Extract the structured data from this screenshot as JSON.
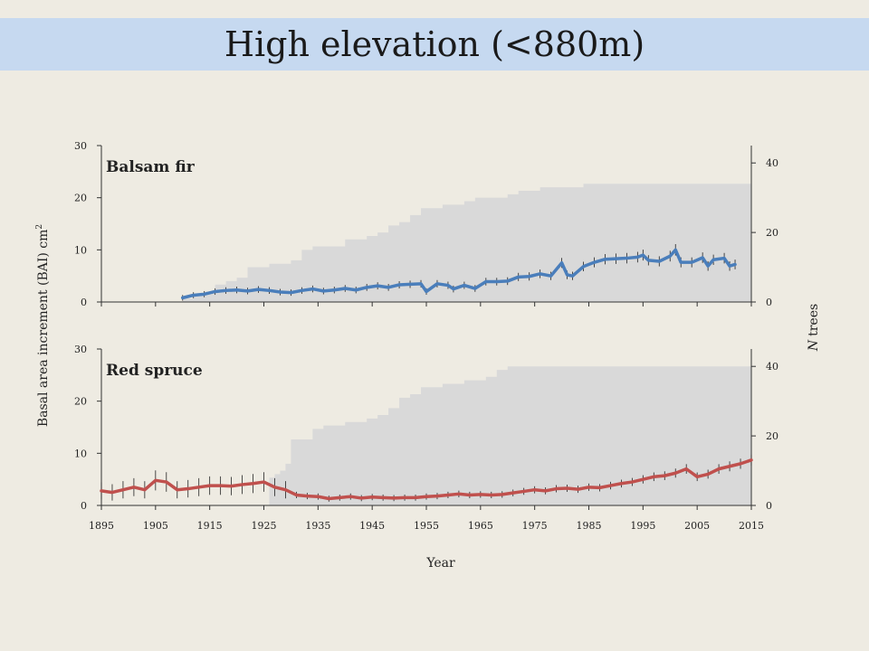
{
  "slide": {
    "title": "High elevation (<880m)"
  },
  "chart_data": {
    "type": "line",
    "xlabel": "Year",
    "ylabel_left": "Basal area increment (BAI) cm",
    "ylabel_left_superscript": "2",
    "ylabel_right_italic": "N",
    "ylabel_right": "trees",
    "x_ticks": [
      1895,
      1905,
      1915,
      1925,
      1935,
      1945,
      1955,
      1965,
      1975,
      1985,
      1995,
      2005,
      2015
    ],
    "xlim": [
      1895,
      2015
    ],
    "grid": false,
    "colors": {
      "fir": "#4a7ebb",
      "spruce": "#c0504d",
      "sample_depth": "#d9d9d9"
    },
    "panels": [
      {
        "label": "Balsam fir",
        "ylim": [
          0,
          30
        ],
        "y_ticks": [
          0,
          10,
          20,
          30
        ],
        "y2lim": [
          0,
          45
        ],
        "y2_ticks": [
          0,
          20,
          40
        ],
        "series": [
          {
            "values_x": [
              1910,
              1912,
              1914,
              1916,
              1918,
              1920,
              1922,
              1924,
              1926,
              1928,
              1930,
              1932,
              1934,
              1936,
              1938,
              1940,
              1942,
              1944,
              1946,
              1948,
              1950,
              1952,
              1954,
              1955,
              1957,
              1959,
              1960,
              1962,
              1964,
              1966,
              1968,
              1970,
              1972,
              1974,
              1976,
              1978,
              1980,
              1981,
              1982,
              1984,
              1986,
              1988,
              1990,
              1992,
              1994,
              1995,
              1996,
              1998,
              2000,
              2001,
              2002,
              2004,
              2006,
              2007,
              2008,
              2010,
              2011,
              2012
            ],
            "values_y": [
              0.8,
              1.3,
              1.5,
              2.0,
              2.2,
              2.3,
              2.1,
              2.4,
              2.2,
              1.9,
              1.8,
              2.2,
              2.5,
              2.1,
              2.3,
              2.6,
              2.3,
              2.8,
              3.1,
              2.8,
              3.3,
              3.4,
              3.5,
              2.0,
              3.5,
              3.2,
              2.5,
              3.2,
              2.6,
              3.9,
              3.9,
              4.0,
              4.8,
              4.9,
              5.4,
              5.0,
              7.5,
              5.2,
              5.0,
              6.8,
              7.6,
              8.2,
              8.3,
              8.4,
              8.6,
              9.0,
              8.0,
              7.8,
              8.8,
              10.0,
              7.6,
              7.6,
              8.5,
              6.9,
              8.1,
              8.4,
              6.9,
              7.2
            ]
          }
        ],
        "sample_depth": {
          "x": [
            1910,
            1912,
            1914,
            1916,
            1918,
            1920,
            1922,
            1924,
            1926,
            1928,
            1930,
            1932,
            1934,
            1936,
            1938,
            1940,
            1942,
            1944,
            1946,
            1948,
            1950,
            1952,
            1954,
            1956,
            1958,
            1960,
            1962,
            1964,
            1966,
            1968,
            1970,
            1972,
            1974,
            1976,
            1978,
            1980,
            1982,
            1984,
            1986,
            1988,
            1990,
            1992,
            1994,
            1996,
            1998,
            2000,
            2002,
            2004,
            2006,
            2008,
            2010,
            2012,
            2015
          ],
          "n": [
            1,
            2,
            3,
            5,
            6,
            7,
            10,
            10,
            11,
            11,
            12,
            15,
            16,
            16,
            16,
            18,
            18,
            19,
            20,
            22,
            23,
            25,
            27,
            27,
            28,
            28,
            29,
            30,
            30,
            30,
            31,
            32,
            32,
            33,
            33,
            33,
            33,
            34,
            34,
            34,
            34,
            34,
            34,
            34,
            34,
            34,
            34,
            34,
            34,
            34,
            34,
            34,
            34
          ]
        }
      },
      {
        "label": "Red spruce",
        "ylim": [
          0,
          30
        ],
        "y_ticks": [
          0,
          10,
          20,
          30
        ],
        "y2lim": [
          0,
          45
        ],
        "y2_ticks": [
          0,
          20,
          40
        ],
        "series": [
          {
            "values_x": [
              1895,
              1897,
              1899,
              1901,
              1903,
              1905,
              1907,
              1909,
              1911,
              1913,
              1915,
              1917,
              1919,
              1921,
              1923,
              1925,
              1927,
              1929,
              1931,
              1933,
              1935,
              1937,
              1939,
              1941,
              1943,
              1945,
              1947,
              1949,
              1951,
              1953,
              1955,
              1957,
              1959,
              1961,
              1963,
              1965,
              1967,
              1969,
              1971,
              1973,
              1975,
              1977,
              1979,
              1981,
              1983,
              1985,
              1987,
              1989,
              1991,
              1993,
              1995,
              1997,
              1999,
              2001,
              2003,
              2005,
              2007,
              2009,
              2011,
              2013,
              2015
            ],
            "values_y": [
              2.8,
              2.5,
              3.0,
              3.5,
              3.0,
              4.8,
              4.5,
              3.0,
              3.2,
              3.5,
              3.8,
              3.8,
              3.7,
              4.0,
              4.2,
              4.5,
              3.5,
              3.0,
              2.0,
              1.8,
              1.7,
              1.3,
              1.5,
              1.7,
              1.4,
              1.6,
              1.5,
              1.4,
              1.5,
              1.5,
              1.7,
              1.8,
              2.0,
              2.2,
              2.0,
              2.1,
              2.0,
              2.1,
              2.4,
              2.7,
              3.0,
              2.8,
              3.2,
              3.3,
              3.1,
              3.5,
              3.4,
              3.8,
              4.2,
              4.5,
              5.0,
              5.5,
              5.7,
              6.2,
              7.0,
              5.5,
              6.0,
              7.0,
              7.5,
              8.0,
              8.7
            ]
          }
        ],
        "sample_depth": {
          "x": [
            1895,
            1925,
            1926,
            1927,
            1928,
            1929,
            1930,
            1932,
            1934,
            1936,
            1938,
            1940,
            1942,
            1944,
            1946,
            1948,
            1950,
            1952,
            1954,
            1956,
            1958,
            1960,
            1962,
            1964,
            1966,
            1968,
            1970,
            1972,
            1975,
            2015
          ],
          "n": [
            0,
            0,
            8,
            9,
            10,
            12,
            19,
            19,
            22,
            23,
            23,
            24,
            24,
            25,
            26,
            28,
            31,
            32,
            34,
            34,
            35,
            35,
            36,
            36,
            37,
            39,
            40,
            40,
            40,
            40
          ]
        }
      }
    ]
  }
}
